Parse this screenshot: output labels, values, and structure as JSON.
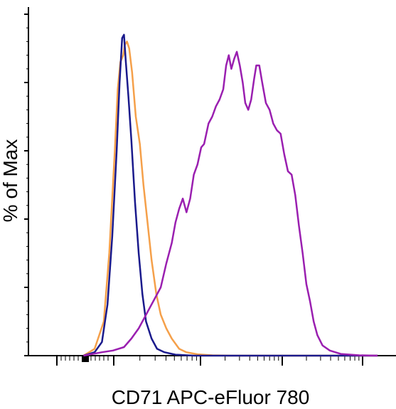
{
  "chart_data": {
    "type": "line",
    "title": "",
    "xlabel": "CD71 APC-eFluor 780",
    "ylabel": "% of Max",
    "x_scale": "biexponential",
    "x_tick_labels": [],
    "y_tick_labels": [],
    "ylim": [
      0,
      100
    ],
    "y_major_ticks": [
      0,
      20,
      40,
      60,
      80,
      100
    ],
    "grid": false,
    "legend": "none",
    "series": [
      {
        "color": "#f5a04a",
        "points": [
          [
            0.15,
            0
          ],
          [
            0.18,
            2
          ],
          [
            0.205,
            10
          ],
          [
            0.22,
            30
          ],
          [
            0.235,
            60
          ],
          [
            0.243,
            78
          ],
          [
            0.25,
            86
          ],
          [
            0.258,
            88
          ],
          [
            0.262,
            91
          ],
          [
            0.268,
            92
          ],
          [
            0.274,
            90
          ],
          [
            0.282,
            83
          ],
          [
            0.292,
            70
          ],
          [
            0.303,
            62
          ],
          [
            0.313,
            50
          ],
          [
            0.323,
            40
          ],
          [
            0.335,
            28
          ],
          [
            0.348,
            18
          ],
          [
            0.36,
            12
          ],
          [
            0.375,
            8
          ],
          [
            0.39,
            5
          ],
          [
            0.41,
            2
          ],
          [
            0.43,
            1
          ],
          [
            0.46,
            0.4
          ],
          [
            0.5,
            0.1
          ],
          [
            0.55,
            0
          ],
          [
            0.95,
            0
          ]
        ]
      },
      {
        "color": "#1a1a8c",
        "points": [
          [
            0.15,
            0
          ],
          [
            0.18,
            1
          ],
          [
            0.2,
            4
          ],
          [
            0.215,
            15
          ],
          [
            0.228,
            35
          ],
          [
            0.24,
            60
          ],
          [
            0.248,
            80
          ],
          [
            0.255,
            93
          ],
          [
            0.26,
            94
          ],
          [
            0.265,
            86
          ],
          [
            0.272,
            76
          ],
          [
            0.28,
            63
          ],
          [
            0.29,
            45
          ],
          [
            0.3,
            30
          ],
          [
            0.31,
            18
          ],
          [
            0.32,
            10
          ],
          [
            0.335,
            5
          ],
          [
            0.35,
            2
          ],
          [
            0.37,
            1
          ],
          [
            0.4,
            0.3
          ],
          [
            0.45,
            0
          ],
          [
            0.95,
            0
          ]
        ]
      },
      {
        "color": "#9a1fb0",
        "points": [
          [
            0.15,
            0
          ],
          [
            0.2,
            1
          ],
          [
            0.23,
            1.5
          ],
          [
            0.26,
            2.5
          ],
          [
            0.28,
            5
          ],
          [
            0.3,
            8
          ],
          [
            0.315,
            11
          ],
          [
            0.33,
            14
          ],
          [
            0.345,
            17
          ],
          [
            0.36,
            20
          ],
          [
            0.375,
            27
          ],
          [
            0.39,
            33
          ],
          [
            0.4,
            39
          ],
          [
            0.41,
            43
          ],
          [
            0.42,
            46
          ],
          [
            0.43,
            42
          ],
          [
            0.44,
            46
          ],
          [
            0.45,
            53
          ],
          [
            0.46,
            56
          ],
          [
            0.47,
            61
          ],
          [
            0.478,
            62
          ],
          [
            0.49,
            68
          ],
          [
            0.5,
            70
          ],
          [
            0.51,
            73
          ],
          [
            0.52,
            75
          ],
          [
            0.53,
            78
          ],
          [
            0.538,
            85
          ],
          [
            0.545,
            88
          ],
          [
            0.552,
            84
          ],
          [
            0.56,
            87
          ],
          [
            0.567,
            89
          ],
          [
            0.575,
            85
          ],
          [
            0.583,
            80
          ],
          [
            0.59,
            74
          ],
          [
            0.598,
            72
          ],
          [
            0.606,
            75
          ],
          [
            0.614,
            81
          ],
          [
            0.62,
            85
          ],
          [
            0.628,
            85
          ],
          [
            0.636,
            80
          ],
          [
            0.646,
            74
          ],
          [
            0.656,
            72
          ],
          [
            0.666,
            68
          ],
          [
            0.676,
            66
          ],
          [
            0.686,
            65
          ],
          [
            0.696,
            59
          ],
          [
            0.706,
            54
          ],
          [
            0.716,
            53
          ],
          [
            0.726,
            47
          ],
          [
            0.736,
            38
          ],
          [
            0.746,
            30
          ],
          [
            0.756,
            21
          ],
          [
            0.766,
            16
          ],
          [
            0.776,
            10
          ],
          [
            0.786,
            6
          ],
          [
            0.8,
            3
          ],
          [
            0.82,
            1.5
          ],
          [
            0.85,
            0.5
          ],
          [
            0.9,
            0.1
          ],
          [
            0.95,
            0
          ]
        ]
      }
    ]
  }
}
